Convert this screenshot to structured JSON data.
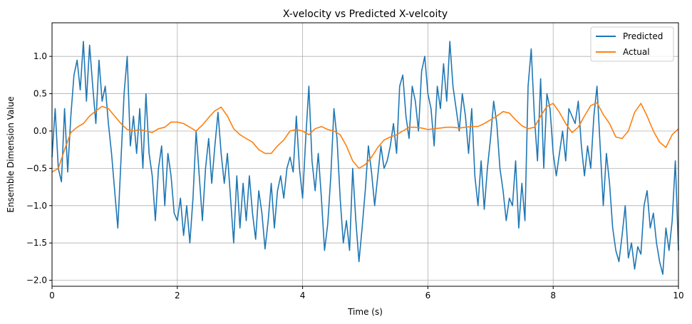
{
  "chart_data": {
    "type": "line",
    "title": "X-velocity vs Predicted X-velcoity",
    "xlabel": "Time (s)",
    "ylabel": "Ensemble Dimension Value",
    "xlim": [
      0,
      10
    ],
    "ylim": [
      -2.08,
      1.45
    ],
    "x_ticks": [
      0,
      2,
      4,
      6,
      8,
      10
    ],
    "x_tick_labels": [
      "0",
      "2",
      "4",
      "6",
      "8",
      "10"
    ],
    "y_ticks": [
      1.0,
      0.5,
      0.0,
      -0.5,
      -1.0,
      -1.5,
      -2.0
    ],
    "y_tick_labels": [
      "1.0",
      "0.5",
      "0.0",
      "−0.5",
      "−1.0",
      "−1.5",
      "−2.0"
    ],
    "grid": true,
    "legend_position": "top-right",
    "series": [
      {
        "name": "Predicted",
        "color": "#1f77b4",
        "points": [
          [
            0.0,
            -0.35
          ],
          [
            0.05,
            0.3
          ],
          [
            0.1,
            -0.5
          ],
          [
            0.15,
            -0.68
          ],
          [
            0.2,
            0.3
          ],
          [
            0.25,
            -0.55
          ],
          [
            0.3,
            0.2
          ],
          [
            0.35,
            0.75
          ],
          [
            0.4,
            0.95
          ],
          [
            0.45,
            0.55
          ],
          [
            0.5,
            1.2
          ],
          [
            0.55,
            0.4
          ],
          [
            0.6,
            1.15
          ],
          [
            0.65,
            0.6
          ],
          [
            0.7,
            0.1
          ],
          [
            0.75,
            0.95
          ],
          [
            0.8,
            0.4
          ],
          [
            0.85,
            0.6
          ],
          [
            0.9,
            0.1
          ],
          [
            0.95,
            -0.3
          ],
          [
            1.0,
            -0.8
          ],
          [
            1.05,
            -1.3
          ],
          [
            1.1,
            -0.4
          ],
          [
            1.15,
            0.5
          ],
          [
            1.2,
            1.0
          ],
          [
            1.25,
            -0.2
          ],
          [
            1.3,
            0.2
          ],
          [
            1.35,
            -0.3
          ],
          [
            1.4,
            0.3
          ],
          [
            1.45,
            -0.5
          ],
          [
            1.5,
            0.5
          ],
          [
            1.55,
            -0.3
          ],
          [
            1.6,
            -0.6
          ],
          [
            1.65,
            -1.2
          ],
          [
            1.7,
            -0.5
          ],
          [
            1.75,
            -0.2
          ],
          [
            1.8,
            -1.0
          ],
          [
            1.85,
            -0.3
          ],
          [
            1.9,
            -0.6
          ],
          [
            1.95,
            -1.1
          ],
          [
            2.0,
            -1.2
          ],
          [
            2.05,
            -0.9
          ],
          [
            2.1,
            -1.4
          ],
          [
            2.15,
            -1.0
          ],
          [
            2.2,
            -1.5
          ],
          [
            2.25,
            -0.9
          ],
          [
            2.3,
            0.0
          ],
          [
            2.35,
            -0.6
          ],
          [
            2.4,
            -1.2
          ],
          [
            2.45,
            -0.5
          ],
          [
            2.5,
            -0.1
          ],
          [
            2.55,
            -0.7
          ],
          [
            2.6,
            -0.2
          ],
          [
            2.65,
            0.25
          ],
          [
            2.7,
            -0.3
          ],
          [
            2.75,
            -0.7
          ],
          [
            2.8,
            -0.3
          ],
          [
            2.85,
            -0.9
          ],
          [
            2.9,
            -1.5
          ],
          [
            2.95,
            -0.6
          ],
          [
            3.0,
            -1.3
          ],
          [
            3.05,
            -0.7
          ],
          [
            3.1,
            -1.2
          ],
          [
            3.15,
            -0.6
          ],
          [
            3.2,
            -1.1
          ],
          [
            3.25,
            -1.45
          ],
          [
            3.3,
            -0.8
          ],
          [
            3.35,
            -1.1
          ],
          [
            3.4,
            -1.58
          ],
          [
            3.45,
            -1.2
          ],
          [
            3.5,
            -0.7
          ],
          [
            3.55,
            -1.3
          ],
          [
            3.6,
            -0.8
          ],
          [
            3.65,
            -0.6
          ],
          [
            3.7,
            -0.9
          ],
          [
            3.75,
            -0.5
          ],
          [
            3.8,
            -0.35
          ],
          [
            3.85,
            -0.55
          ],
          [
            3.9,
            0.2
          ],
          [
            3.95,
            -0.5
          ],
          [
            4.0,
            -0.9
          ],
          [
            4.05,
            -0.1
          ],
          [
            4.1,
            0.6
          ],
          [
            4.15,
            -0.4
          ],
          [
            4.2,
            -0.8
          ],
          [
            4.25,
            -0.3
          ],
          [
            4.3,
            -0.9
          ],
          [
            4.35,
            -1.6
          ],
          [
            4.4,
            -1.25
          ],
          [
            4.45,
            -0.6
          ],
          [
            4.5,
            0.3
          ],
          [
            4.55,
            -0.1
          ],
          [
            4.6,
            -0.9
          ],
          [
            4.65,
            -1.5
          ],
          [
            4.7,
            -1.2
          ],
          [
            4.75,
            -1.6
          ],
          [
            4.8,
            -0.5
          ],
          [
            4.85,
            -1.2
          ],
          [
            4.9,
            -1.75
          ],
          [
            4.95,
            -1.3
          ],
          [
            5.0,
            -0.8
          ],
          [
            5.05,
            -0.2
          ],
          [
            5.1,
            -0.55
          ],
          [
            5.15,
            -1.0
          ],
          [
            5.2,
            -0.6
          ],
          [
            5.25,
            -0.2
          ],
          [
            5.3,
            -0.5
          ],
          [
            5.35,
            -0.4
          ],
          [
            5.4,
            -0.2
          ],
          [
            5.45,
            0.1
          ],
          [
            5.5,
            -0.3
          ],
          [
            5.55,
            0.6
          ],
          [
            5.6,
            0.75
          ],
          [
            5.65,
            0.2
          ],
          [
            5.7,
            -0.1
          ],
          [
            5.75,
            0.6
          ],
          [
            5.8,
            0.4
          ],
          [
            5.85,
            0.0
          ],
          [
            5.9,
            0.8
          ],
          [
            5.95,
            1.0
          ],
          [
            6.0,
            0.5
          ],
          [
            6.05,
            0.3
          ],
          [
            6.1,
            -0.2
          ],
          [
            6.15,
            0.6
          ],
          [
            6.2,
            0.3
          ],
          [
            6.25,
            0.9
          ],
          [
            6.3,
            0.4
          ],
          [
            6.35,
            1.2
          ],
          [
            6.4,
            0.6
          ],
          [
            6.45,
            0.3
          ],
          [
            6.5,
            0.0
          ],
          [
            6.55,
            0.5
          ],
          [
            6.6,
            0.2
          ],
          [
            6.65,
            -0.3
          ],
          [
            6.7,
            0.3
          ],
          [
            6.75,
            -0.6
          ],
          [
            6.8,
            -1.0
          ],
          [
            6.85,
            -0.4
          ],
          [
            6.9,
            -1.05
          ],
          [
            6.95,
            -0.5
          ],
          [
            7.0,
            -0.1
          ],
          [
            7.05,
            0.4
          ],
          [
            7.1,
            0.1
          ],
          [
            7.15,
            -0.5
          ],
          [
            7.2,
            -0.8
          ],
          [
            7.25,
            -1.2
          ],
          [
            7.3,
            -0.9
          ],
          [
            7.35,
            -1.0
          ],
          [
            7.4,
            -0.4
          ],
          [
            7.45,
            -1.3
          ],
          [
            7.5,
            -0.7
          ],
          [
            7.55,
            -1.2
          ],
          [
            7.6,
            0.6
          ],
          [
            7.65,
            1.1
          ],
          [
            7.7,
            0.2
          ],
          [
            7.75,
            -0.4
          ],
          [
            7.8,
            0.7
          ],
          [
            7.85,
            -0.5
          ],
          [
            7.9,
            0.5
          ],
          [
            7.95,
            0.3
          ],
          [
            8.0,
            -0.3
          ],
          [
            8.05,
            -0.6
          ],
          [
            8.1,
            -0.3
          ],
          [
            8.15,
            0.0
          ],
          [
            8.2,
            -0.4
          ],
          [
            8.25,
            0.3
          ],
          [
            8.3,
            0.2
          ],
          [
            8.35,
            0.1
          ],
          [
            8.4,
            0.4
          ],
          [
            8.45,
            -0.2
          ],
          [
            8.5,
            -0.6
          ],
          [
            8.55,
            -0.2
          ],
          [
            8.6,
            -0.5
          ],
          [
            8.65,
            0.2
          ],
          [
            8.7,
            0.6
          ],
          [
            8.75,
            -0.2
          ],
          [
            8.8,
            -1.0
          ],
          [
            8.85,
            -0.3
          ],
          [
            8.9,
            -0.7
          ],
          [
            8.95,
            -1.3
          ],
          [
            9.0,
            -1.6
          ],
          [
            9.05,
            -1.75
          ],
          [
            9.1,
            -1.4
          ],
          [
            9.15,
            -1.0
          ],
          [
            9.2,
            -1.7
          ],
          [
            9.25,
            -1.5
          ],
          [
            9.3,
            -1.85
          ],
          [
            9.35,
            -1.55
          ],
          [
            9.4,
            -1.65
          ],
          [
            9.45,
            -1.0
          ],
          [
            9.5,
            -0.8
          ],
          [
            9.55,
            -1.3
          ],
          [
            9.6,
            -1.1
          ],
          [
            9.65,
            -1.5
          ],
          [
            9.7,
            -1.75
          ],
          [
            9.75,
            -1.92
          ],
          [
            9.8,
            -1.3
          ],
          [
            9.85,
            -1.6
          ],
          [
            9.9,
            -1.2
          ],
          [
            9.95,
            -0.4
          ],
          [
            10.0,
            -1.6
          ]
        ]
      },
      {
        "name": "Actual",
        "color": "#ff7f0e",
        "points": [
          [
            0.0,
            -0.55
          ],
          [
            0.1,
            -0.5
          ],
          [
            0.2,
            -0.25
          ],
          [
            0.3,
            -0.02
          ],
          [
            0.4,
            0.05
          ],
          [
            0.5,
            0.1
          ],
          [
            0.6,
            0.2
          ],
          [
            0.7,
            0.27
          ],
          [
            0.8,
            0.33
          ],
          [
            0.9,
            0.3
          ],
          [
            1.0,
            0.2
          ],
          [
            1.1,
            0.1
          ],
          [
            1.2,
            0.02
          ],
          [
            1.3,
            0.0
          ],
          [
            1.4,
            0.02
          ],
          [
            1.5,
            0.0
          ],
          [
            1.6,
            -0.02
          ],
          [
            1.7,
            0.03
          ],
          [
            1.8,
            0.05
          ],
          [
            1.9,
            0.12
          ],
          [
            2.0,
            0.12
          ],
          [
            2.1,
            0.1
          ],
          [
            2.2,
            0.05
          ],
          [
            2.3,
            0.0
          ],
          [
            2.4,
            0.08
          ],
          [
            2.5,
            0.18
          ],
          [
            2.6,
            0.27
          ],
          [
            2.7,
            0.32
          ],
          [
            2.8,
            0.2
          ],
          [
            2.9,
            0.03
          ],
          [
            3.0,
            -0.05
          ],
          [
            3.1,
            -0.1
          ],
          [
            3.2,
            -0.15
          ],
          [
            3.3,
            -0.25
          ],
          [
            3.4,
            -0.3
          ],
          [
            3.5,
            -0.3
          ],
          [
            3.6,
            -0.2
          ],
          [
            3.7,
            -0.12
          ],
          [
            3.8,
            0.0
          ],
          [
            3.9,
            0.02
          ],
          [
            4.0,
            0.0
          ],
          [
            4.1,
            -0.05
          ],
          [
            4.2,
            0.03
          ],
          [
            4.3,
            0.06
          ],
          [
            4.4,
            0.02
          ],
          [
            4.5,
            0.0
          ],
          [
            4.6,
            -0.05
          ],
          [
            4.7,
            -0.2
          ],
          [
            4.8,
            -0.4
          ],
          [
            4.9,
            -0.5
          ],
          [
            5.0,
            -0.45
          ],
          [
            5.1,
            -0.35
          ],
          [
            5.2,
            -0.22
          ],
          [
            5.3,
            -0.12
          ],
          [
            5.4,
            -0.08
          ],
          [
            5.5,
            -0.05
          ],
          [
            5.6,
            0.0
          ],
          [
            5.7,
            0.05
          ],
          [
            5.8,
            0.05
          ],
          [
            5.9,
            0.04
          ],
          [
            6.0,
            0.02
          ],
          [
            6.1,
            0.03
          ],
          [
            6.2,
            0.04
          ],
          [
            6.3,
            0.05
          ],
          [
            6.4,
            0.05
          ],
          [
            6.5,
            0.04
          ],
          [
            6.6,
            0.05
          ],
          [
            6.7,
            0.06
          ],
          [
            6.8,
            0.06
          ],
          [
            6.9,
            0.1
          ],
          [
            7.0,
            0.15
          ],
          [
            7.1,
            0.2
          ],
          [
            7.2,
            0.26
          ],
          [
            7.3,
            0.24
          ],
          [
            7.4,
            0.15
          ],
          [
            7.5,
            0.07
          ],
          [
            7.6,
            0.03
          ],
          [
            7.7,
            0.05
          ],
          [
            7.8,
            0.2
          ],
          [
            7.9,
            0.33
          ],
          [
            8.0,
            0.37
          ],
          [
            8.1,
            0.25
          ],
          [
            8.2,
            0.1
          ],
          [
            8.3,
            -0.02
          ],
          [
            8.4,
            0.05
          ],
          [
            8.5,
            0.2
          ],
          [
            8.6,
            0.34
          ],
          [
            8.7,
            0.38
          ],
          [
            8.8,
            0.22
          ],
          [
            8.9,
            0.1
          ],
          [
            9.0,
            -0.08
          ],
          [
            9.1,
            -0.1
          ],
          [
            9.2,
            0.0
          ],
          [
            9.3,
            0.25
          ],
          [
            9.4,
            0.37
          ],
          [
            9.5,
            0.2
          ],
          [
            9.6,
            0.0
          ],
          [
            9.7,
            -0.15
          ],
          [
            9.8,
            -0.22
          ],
          [
            9.9,
            -0.05
          ],
          [
            10.0,
            0.03
          ]
        ]
      }
    ]
  }
}
